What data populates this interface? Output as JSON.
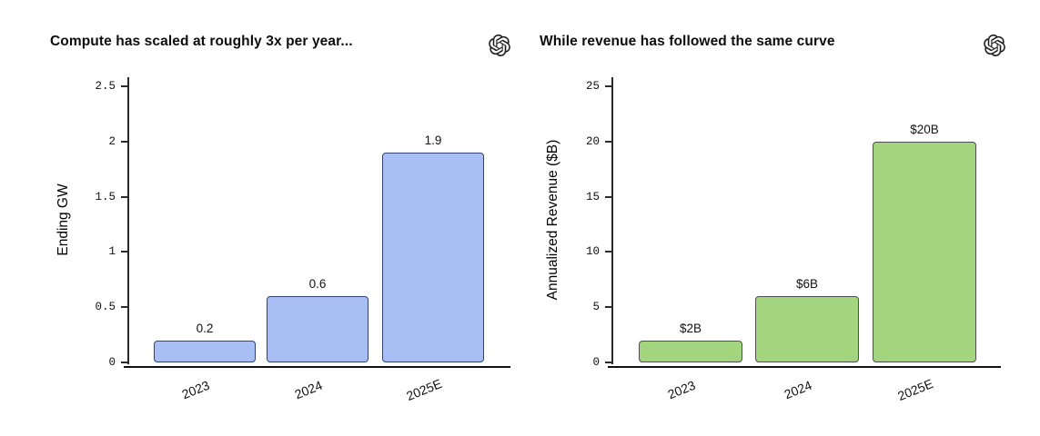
{
  "page": {
    "background": "#ffffff",
    "logo_icon": "openai-logo"
  },
  "chart_data": [
    {
      "type": "bar",
      "title": "Compute has scaled at roughly 3x per year...",
      "categories": [
        "2023",
        "2024",
        "2025E"
      ],
      "values": [
        0.2,
        0.6,
        1.9
      ],
      "bar_labels": [
        "0.2",
        "0.6",
        "1.9"
      ],
      "xlabel": "",
      "ylabel": "Ending GW",
      "ylim": [
        0,
        2.5
      ],
      "yticks": [
        0,
        0.5,
        1,
        1.5,
        2,
        2.5
      ],
      "ytick_labels": [
        "0",
        "0.5",
        "1",
        "1.5",
        "2",
        "2.5"
      ],
      "grid": false,
      "legend": "none",
      "bar_fill": "#a9bef2",
      "bar_border": "#2f4377"
    },
    {
      "type": "bar",
      "title": "While revenue has followed the same curve",
      "categories": [
        "2023",
        "2024",
        "2025E"
      ],
      "values": [
        2,
        6,
        20
      ],
      "bar_labels": [
        "$2B",
        "$6B",
        "$20B"
      ],
      "xlabel": "",
      "ylabel": "Annualized Revenue ($B)",
      "ylim": [
        0,
        25
      ],
      "yticks": [
        0,
        5,
        10,
        15,
        20,
        25
      ],
      "ytick_labels": [
        "0",
        "5",
        "10",
        "15",
        "20",
        "25"
      ],
      "grid": false,
      "legend": "none",
      "bar_fill": "#a3d47e",
      "bar_border": "#4e4e4e"
    }
  ]
}
